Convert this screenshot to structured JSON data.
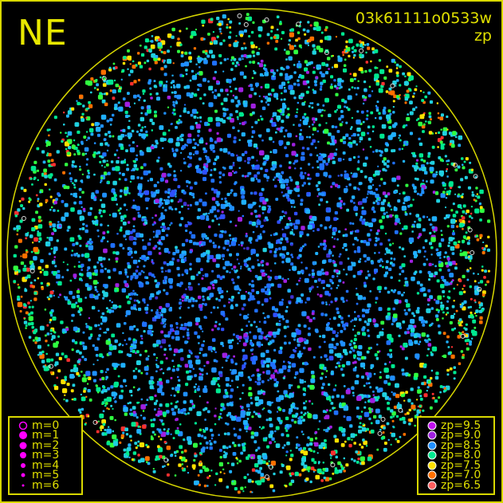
{
  "direction_label": "NE",
  "image_id": "03k61111o0533w",
  "mode_label": "zp",
  "colors": {
    "frame": "#d8d800",
    "horizon": "#d8d800",
    "text": "#e0e000",
    "magnitude_symbol": "#ff00ff"
  },
  "magnitude_legend": [
    {
      "label": "m=0",
      "style": "ring"
    },
    {
      "label": "m=1",
      "style": "dot"
    },
    {
      "label": "m=2",
      "style": "dot"
    },
    {
      "label": "m=3",
      "style": "dot"
    },
    {
      "label": "m=4",
      "style": "dot"
    },
    {
      "label": "m=5",
      "style": "dot"
    },
    {
      "label": "m=6",
      "style": "dot"
    }
  ],
  "zp_legend": [
    {
      "label": "zp=9.5",
      "color": "#c010f0"
    },
    {
      "label": "zp=9.0",
      "color": "#a020e0"
    },
    {
      "label": "zp=8.5",
      "color": "#2090ff"
    },
    {
      "label": "zp=8.0",
      "color": "#00e890"
    },
    {
      "label": "zp=7.5",
      "color": "#ffe000"
    },
    {
      "label": "zp=7.0",
      "color": "#ff7000"
    },
    {
      "label": "zp=6.5",
      "color": "#ff6060"
    }
  ]
}
